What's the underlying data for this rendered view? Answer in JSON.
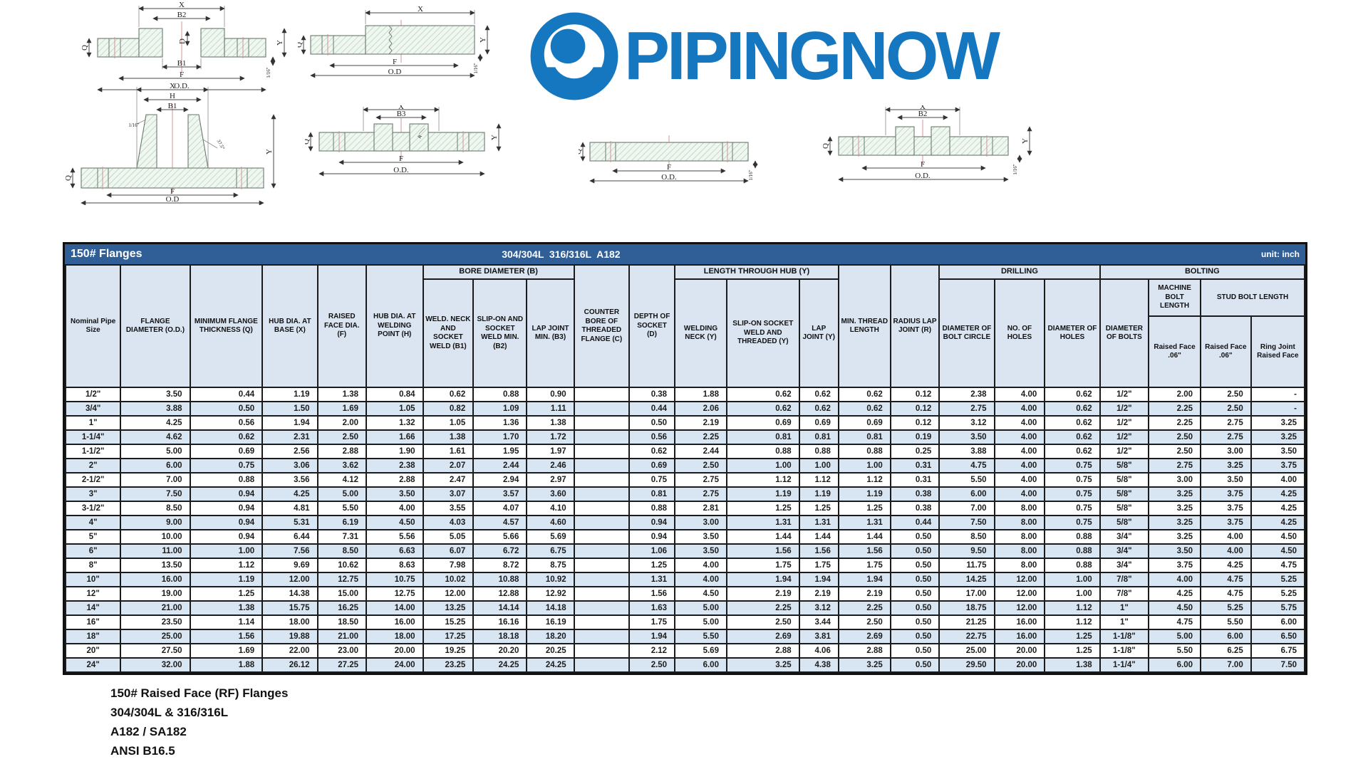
{
  "logo": {
    "text": "PIPINGNOW",
    "color": "#1577bf"
  },
  "title_bar": {
    "left": "150# Flanges",
    "center": "304/304L  316/316L  A182",
    "right": "unit: inch"
  },
  "footer_lines": [
    "150# Raised Face (RF) Flanges",
    "304/304L & 316/316L",
    "A182 / SA182",
    "ANSI B16.5"
  ],
  "diagrams": [
    {
      "name": "socket-weld-flange-section",
      "labels": [
        "X",
        "B2",
        "D",
        "B1",
        "F",
        "O.D.",
        "Q",
        "Y",
        "1/16\""
      ]
    },
    {
      "name": "threaded-flange-section",
      "labels": [
        "X",
        "F",
        "O.D",
        "Q",
        "Y",
        "1/16\""
      ]
    },
    {
      "name": "weld-neck-flange-section",
      "labels": [
        "X",
        "H",
        "B1",
        "1/16\"",
        "37.5°",
        "Q",
        "Y",
        "F",
        "O.D"
      ]
    },
    {
      "name": "slip-on-flange-section",
      "labels": [
        "X",
        "B3",
        "R",
        "Q",
        "Y",
        "F",
        "O.D."
      ]
    },
    {
      "name": "plate-flange-section",
      "labels": [
        "Q",
        "F",
        "O.D.",
        "1/16\""
      ]
    },
    {
      "name": "lap-joint-flange-section",
      "labels": [
        "X",
        "B2",
        "Q",
        "Y",
        "1/16\"",
        "F",
        "O.D."
      ]
    }
  ],
  "table": {
    "groups": {
      "bore": "BORE DIAMETER (B)",
      "hub": "LENGTH THROUGH HUB (Y)",
      "drilling": "DRILLING",
      "bolting": "BOLTING",
      "machine_bolt": "MACHINE BOLT LENGTH",
      "stud_bolt": "STUD BOLT LENGTH"
    },
    "columns": {
      "nominal": "Nominal Pipe Size",
      "od": "FLANGE DIAMETER (O.D.)",
      "q": "MINIMUM FLANGE THICKNESS (Q)",
      "x": "HUB DIA. AT BASE (X)",
      "f": "RAISED FACE DIA. (F)",
      "h": "HUB DIA. AT WELDING POINT (H)",
      "b1": "WELD. NECK AND SOCKET WELD (B1)",
      "b2": "SLIP-ON AND SOCKET WELD MIN. (B2)",
      "b3": "LAP JOINT MIN. (B3)",
      "c": "COUNTER BORE OF THREADED FLANGE (C)",
      "d": "DEPTH OF SOCKET (D)",
      "y_wn": "WELDING NECK (Y)",
      "y_so": "SLIP-ON SOCKET WELD AND THREADED (Y)",
      "y_lj": "LAP JOINT (Y)",
      "min_thread": "MIN. THREAD LENGTH",
      "radius": "RADIUS LAP JOINT (R)",
      "bolt_circle": "DIAMETER OF BOLT CIRCLE",
      "num_holes": "NO. OF HOLES",
      "dia_holes": "DIAMETER OF HOLES",
      "dia_bolts": "DIAMETER OF BOLTS",
      "machine_rf": "Raised Face .06\"",
      "stud_rf": "Raised Face .06\"",
      "ring_joint": "Ring Joint Raised Face"
    },
    "rows": [
      [
        "1/2\"",
        "3.50",
        "0.44",
        "1.19",
        "1.38",
        "0.84",
        "0.62",
        "0.88",
        "0.90",
        "",
        "0.38",
        "1.88",
        "0.62",
        "0.62",
        "0.62",
        "0.12",
        "2.38",
        "4.00",
        "0.62",
        "1/2\"",
        "2.00",
        "2.50",
        "-"
      ],
      [
        "3/4\"",
        "3.88",
        "0.50",
        "1.50",
        "1.69",
        "1.05",
        "0.82",
        "1.09",
        "1.11",
        "",
        "0.44",
        "2.06",
        "0.62",
        "0.62",
        "0.62",
        "0.12",
        "2.75",
        "4.00",
        "0.62",
        "1/2\"",
        "2.25",
        "2.50",
        "-"
      ],
      [
        "1\"",
        "4.25",
        "0.56",
        "1.94",
        "2.00",
        "1.32",
        "1.05",
        "1.36",
        "1.38",
        "",
        "0.50",
        "2.19",
        "0.69",
        "0.69",
        "0.69",
        "0.12",
        "3.12",
        "4.00",
        "0.62",
        "1/2\"",
        "2.25",
        "2.75",
        "3.25"
      ],
      [
        "1-1/4\"",
        "4.62",
        "0.62",
        "2.31",
        "2.50",
        "1.66",
        "1.38",
        "1.70",
        "1.72",
        "",
        "0.56",
        "2.25",
        "0.81",
        "0.81",
        "0.81",
        "0.19",
        "3.50",
        "4.00",
        "0.62",
        "1/2\"",
        "2.50",
        "2.75",
        "3.25"
      ],
      [
        "1-1/2\"",
        "5.00",
        "0.69",
        "2.56",
        "2.88",
        "1.90",
        "1.61",
        "1.95",
        "1.97",
        "",
        "0.62",
        "2.44",
        "0.88",
        "0.88",
        "0.88",
        "0.25",
        "3.88",
        "4.00",
        "0.62",
        "1/2\"",
        "2.50",
        "3.00",
        "3.50"
      ],
      [
        "2\"",
        "6.00",
        "0.75",
        "3.06",
        "3.62",
        "2.38",
        "2.07",
        "2.44",
        "2.46",
        "",
        "0.69",
        "2.50",
        "1.00",
        "1.00",
        "1.00",
        "0.31",
        "4.75",
        "4.00",
        "0.75",
        "5/8\"",
        "2.75",
        "3.25",
        "3.75"
      ],
      [
        "2-1/2\"",
        "7.00",
        "0.88",
        "3.56",
        "4.12",
        "2.88",
        "2.47",
        "2.94",
        "2.97",
        "",
        "0.75",
        "2.75",
        "1.12",
        "1.12",
        "1.12",
        "0.31",
        "5.50",
        "4.00",
        "0.75",
        "5/8\"",
        "3.00",
        "3.50",
        "4.00"
      ],
      [
        "3\"",
        "7.50",
        "0.94",
        "4.25",
        "5.00",
        "3.50",
        "3.07",
        "3.57",
        "3.60",
        "",
        "0.81",
        "2.75",
        "1.19",
        "1.19",
        "1.19",
        "0.38",
        "6.00",
        "4.00",
        "0.75",
        "5/8\"",
        "3.25",
        "3.75",
        "4.25"
      ],
      [
        "3-1/2\"",
        "8.50",
        "0.94",
        "4.81",
        "5.50",
        "4.00",
        "3.55",
        "4.07",
        "4.10",
        "",
        "0.88",
        "2.81",
        "1.25",
        "1.25",
        "1.25",
        "0.38",
        "7.00",
        "8.00",
        "0.75",
        "5/8\"",
        "3.25",
        "3.75",
        "4.25"
      ],
      [
        "4\"",
        "9.00",
        "0.94",
        "5.31",
        "6.19",
        "4.50",
        "4.03",
        "4.57",
        "4.60",
        "",
        "0.94",
        "3.00",
        "1.31",
        "1.31",
        "1.31",
        "0.44",
        "7.50",
        "8.00",
        "0.75",
        "5/8\"",
        "3.25",
        "3.75",
        "4.25"
      ],
      [
        "5\"",
        "10.00",
        "0.94",
        "6.44",
        "7.31",
        "5.56",
        "5.05",
        "5.66",
        "5.69",
        "",
        "0.94",
        "3.50",
        "1.44",
        "1.44",
        "1.44",
        "0.50",
        "8.50",
        "8.00",
        "0.88",
        "3/4\"",
        "3.25",
        "4.00",
        "4.50"
      ],
      [
        "6\"",
        "11.00",
        "1.00",
        "7.56",
        "8.50",
        "6.63",
        "6.07",
        "6.72",
        "6.75",
        "",
        "1.06",
        "3.50",
        "1.56",
        "1.56",
        "1.56",
        "0.50",
        "9.50",
        "8.00",
        "0.88",
        "3/4\"",
        "3.50",
        "4.00",
        "4.50"
      ],
      [
        "8\"",
        "13.50",
        "1.12",
        "9.69",
        "10.62",
        "8.63",
        "7.98",
        "8.72",
        "8.75",
        "",
        "1.25",
        "4.00",
        "1.75",
        "1.75",
        "1.75",
        "0.50",
        "11.75",
        "8.00",
        "0.88",
        "3/4\"",
        "3.75",
        "4.25",
        "4.75"
      ],
      [
        "10\"",
        "16.00",
        "1.19",
        "12.00",
        "12.75",
        "10.75",
        "10.02",
        "10.88",
        "10.92",
        "",
        "1.31",
        "4.00",
        "1.94",
        "1.94",
        "1.94",
        "0.50",
        "14.25",
        "12.00",
        "1.00",
        "7/8\"",
        "4.00",
        "4.75",
        "5.25"
      ],
      [
        "12\"",
        "19.00",
        "1.25",
        "14.38",
        "15.00",
        "12.75",
        "12.00",
        "12.88",
        "12.92",
        "",
        "1.56",
        "4.50",
        "2.19",
        "2.19",
        "2.19",
        "0.50",
        "17.00",
        "12.00",
        "1.00",
        "7/8\"",
        "4.25",
        "4.75",
        "5.25"
      ],
      [
        "14\"",
        "21.00",
        "1.38",
        "15.75",
        "16.25",
        "14.00",
        "13.25",
        "14.14",
        "14.18",
        "",
        "1.63",
        "5.00",
        "2.25",
        "3.12",
        "2.25",
        "0.50",
        "18.75",
        "12.00",
        "1.12",
        "1\"",
        "4.50",
        "5.25",
        "5.75"
      ],
      [
        "16\"",
        "23.50",
        "1.14",
        "18.00",
        "18.50",
        "16.00",
        "15.25",
        "16.16",
        "16.19",
        "",
        "1.75",
        "5.00",
        "2.50",
        "3.44",
        "2.50",
        "0.50",
        "21.25",
        "16.00",
        "1.12",
        "1\"",
        "4.75",
        "5.50",
        "6.00"
      ],
      [
        "18\"",
        "25.00",
        "1.56",
        "19.88",
        "21.00",
        "18.00",
        "17.25",
        "18.18",
        "18.20",
        "",
        "1.94",
        "5.50",
        "2.69",
        "3.81",
        "2.69",
        "0.50",
        "22.75",
        "16.00",
        "1.25",
        "1-1/8\"",
        "5.00",
        "6.00",
        "6.50"
      ],
      [
        "20\"",
        "27.50",
        "1.69",
        "22.00",
        "23.00",
        "20.00",
        "19.25",
        "20.20",
        "20.25",
        "",
        "2.12",
        "5.69",
        "2.88",
        "4.06",
        "2.88",
        "0.50",
        "25.00",
        "20.00",
        "1.25",
        "1-1/8\"",
        "5.50",
        "6.25",
        "6.75"
      ],
      [
        "24\"",
        "32.00",
        "1.88",
        "26.12",
        "27.25",
        "24.00",
        "23.25",
        "24.25",
        "24.25",
        "",
        "2.50",
        "6.00",
        "3.25",
        "4.38",
        "3.25",
        "0.50",
        "29.50",
        "20.00",
        "1.38",
        "1-1/4\"",
        "6.00",
        "7.00",
        "7.50"
      ]
    ]
  }
}
